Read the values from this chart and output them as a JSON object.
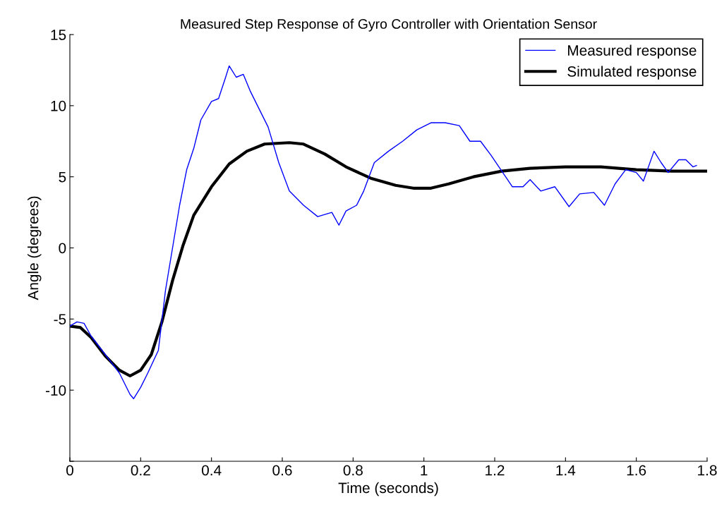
{
  "chart_data": {
    "type": "line",
    "title": "Measured Step Response of Gyro Controller with Orientation Sensor",
    "xlabel": "Time (seconds)",
    "ylabel": "Angle (degrees)",
    "xlim": [
      0,
      1.8
    ],
    "xticks": [
      0,
      0.2,
      0.4,
      0.6,
      0.8,
      1,
      1.2,
      1.4,
      1.6,
      1.8
    ],
    "ylim": [
      -15,
      15
    ],
    "yticks": [
      {
        "value": -15,
        "label": null
      },
      -10,
      -5,
      0,
      5,
      10,
      15
    ],
    "grid": false,
    "legend": "top right",
    "marker": "none",
    "series": [
      {
        "name": "Measured response",
        "color": "#0000ff",
        "line_style": "solid",
        "x": [
          0,
          0.02,
          0.04,
          0.06,
          0.1,
          0.14,
          0.17,
          0.18,
          0.2,
          0.22,
          0.25,
          0.27,
          0.29,
          0.31,
          0.33,
          0.35,
          0.37,
          0.4,
          0.42,
          0.44,
          0.45,
          0.47,
          0.49,
          0.51,
          0.53,
          0.56,
          0.59,
          0.62,
          0.66,
          0.7,
          0.74,
          0.76,
          0.78,
          0.81,
          0.83,
          0.86,
          0.9,
          0.94,
          0.98,
          1.02,
          1.06,
          1.1,
          1.13,
          1.16,
          1.19,
          1.22,
          1.25,
          1.28,
          1.3,
          1.33,
          1.37,
          1.41,
          1.44,
          1.48,
          1.51,
          1.54,
          1.57,
          1.6,
          1.62,
          1.65,
          1.67,
          1.69,
          1.72,
          1.74,
          1.76,
          1.77
        ],
        "values": [
          -5.5,
          -5.2,
          -5.3,
          -6.2,
          -7.5,
          -8.8,
          -10.3,
          -10.6,
          -9.8,
          -8.8,
          -7.2,
          -3,
          0,
          3,
          5.5,
          7,
          9,
          10.3,
          10.5,
          12,
          12.8,
          12,
          12.2,
          11,
          10,
          8.5,
          6,
          4,
          3,
          2.2,
          2.5,
          1.6,
          2.6,
          3,
          4,
          6,
          6.8,
          7.5,
          8.3,
          8.8,
          8.8,
          8.6,
          7.5,
          7.5,
          6.5,
          5.4,
          4.3,
          4.3,
          4.8,
          4,
          4.3,
          2.9,
          3.8,
          3.9,
          3,
          4.5,
          5.5,
          5.3,
          4.7,
          6.8,
          6,
          5.3,
          6.2,
          6.2,
          5.7,
          5.8
        ]
      },
      {
        "name": "Simulated response",
        "color": "#000000",
        "line_style": "solid",
        "x": [
          0,
          0.03,
          0.06,
          0.1,
          0.14,
          0.17,
          0.2,
          0.23,
          0.26,
          0.29,
          0.32,
          0.35,
          0.4,
          0.45,
          0.5,
          0.55,
          0.62,
          0.66,
          0.72,
          0.78,
          0.85,
          0.92,
          0.97,
          1.02,
          1.07,
          1.14,
          1.22,
          1.3,
          1.4,
          1.5,
          1.6,
          1.7,
          1.8
        ],
        "values": [
          -5.5,
          -5.6,
          -6.3,
          -7.6,
          -8.6,
          -9,
          -8.6,
          -7.5,
          -5.2,
          -2.3,
          0.2,
          2.3,
          4.3,
          5.9,
          6.8,
          7.3,
          7.4,
          7.3,
          6.6,
          5.7,
          4.9,
          4.4,
          4.2,
          4.2,
          4.5,
          5,
          5.4,
          5.6,
          5.7,
          5.7,
          5.5,
          5.4,
          5.4
        ]
      }
    ]
  }
}
